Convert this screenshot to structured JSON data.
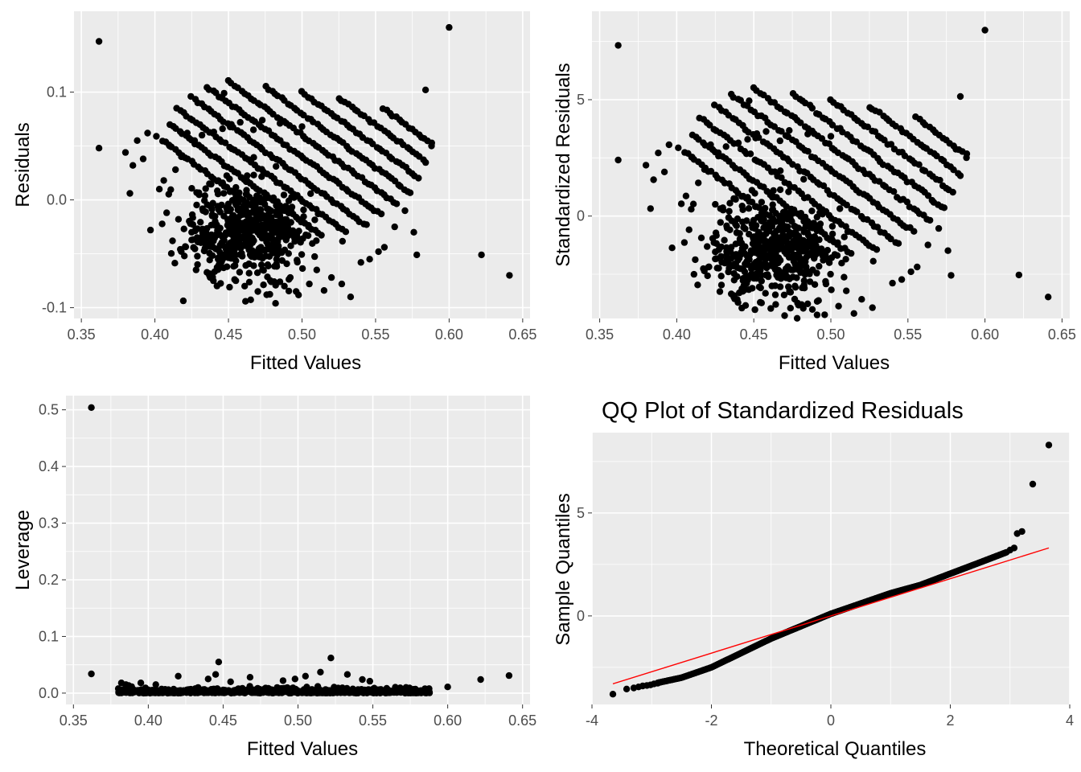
{
  "colors": {
    "panel_background": "#ebebeb",
    "grid_major": "#ffffff",
    "points": "#000000",
    "reference_line": "#ff0000",
    "tick_text": "#4d4d4d"
  },
  "chart_data": [
    {
      "id": "residuals-vs-fitted",
      "type": "scatter",
      "title": "",
      "xlabel": "Fitted Values",
      "ylabel": "Residuals",
      "xlim": [
        0.345,
        0.655
      ],
      "ylim": [
        -0.11,
        0.175
      ],
      "xticks": [
        0.35,
        0.4,
        0.45,
        0.5,
        0.55,
        0.6,
        0.65
      ],
      "xtick_labels": [
        "0.35",
        "0.40",
        "0.45",
        "0.50",
        "0.55",
        "0.60",
        "0.65"
      ],
      "yticks": [
        -0.1,
        0.0,
        0.1
      ],
      "ytick_labels": [
        "-0.1",
        "0.0",
        "0.1"
      ],
      "grid": true,
      "points": [
        [
          0.362,
          0.147
        ],
        [
          0.362,
          0.048
        ],
        [
          0.6,
          0.16
        ],
        [
          0.584,
          0.102
        ],
        [
          0.447,
          0.099
        ],
        [
          0.622,
          -0.051
        ],
        [
          0.641,
          -0.07
        ],
        [
          0.38,
          0.044
        ],
        [
          0.383,
          0.006
        ],
        [
          0.385,
          0.032
        ],
        [
          0.388,
          0.055
        ],
        [
          0.392,
          0.038
        ],
        [
          0.395,
          0.062
        ],
        [
          0.397,
          -0.028
        ],
        [
          0.401,
          0.059
        ],
        [
          0.403,
          0.01
        ],
        [
          0.406,
          0.018
        ],
        [
          0.408,
          -0.012
        ],
        [
          0.41,
          0.05
        ],
        [
          0.412,
          -0.038
        ],
        [
          0.414,
          0.028
        ],
        [
          0.416,
          -0.018
        ],
        [
          0.418,
          0.04
        ],
        [
          0.42,
          -0.052
        ],
        [
          0.422,
          0.062
        ],
        [
          0.425,
          -0.03
        ],
        [
          0.427,
          0.055
        ],
        [
          0.429,
          -0.06
        ],
        [
          0.432,
          0.06
        ],
        [
          0.434,
          -0.045
        ],
        [
          0.437,
          -0.07
        ],
        [
          0.44,
          0.063
        ],
        [
          0.443,
          -0.055
        ],
        [
          0.446,
          0.066
        ],
        [
          0.449,
          -0.062
        ],
        [
          0.452,
          0.07
        ],
        [
          0.455,
          -0.075
        ],
        [
          0.458,
          0.072
        ],
        [
          0.461,
          -0.08
        ],
        [
          0.464,
          -0.068
        ],
        [
          0.467,
          0.065
        ],
        [
          0.47,
          -0.085
        ],
        [
          0.473,
          0.074
        ],
        [
          0.476,
          -0.088
        ],
        [
          0.479,
          -0.076
        ],
        [
          0.482,
          -0.096
        ],
        [
          0.485,
          0.071
        ],
        [
          0.488,
          -0.08
        ],
        [
          0.492,
          -0.072
        ],
        [
          0.496,
          -0.085
        ],
        [
          0.5,
          0.068
        ],
        [
          0.505,
          -0.078
        ],
        [
          0.51,
          -0.065
        ],
        [
          0.515,
          -0.084
        ],
        [
          0.52,
          -0.072
        ],
        [
          0.527,
          -0.078
        ],
        [
          0.533,
          -0.09
        ],
        [
          0.54,
          -0.058
        ],
        [
          0.546,
          -0.055
        ],
        [
          0.552,
          -0.048
        ],
        [
          0.556,
          -0.044
        ],
        [
          0.563,
          -0.025
        ],
        [
          0.57,
          -0.01
        ],
        [
          0.576,
          -0.03
        ],
        [
          0.578,
          -0.051
        ],
        [
          0.588,
          0.05
        ]
      ],
      "line_families": {
        "description": "Diagonal bands of points, each band residual = c - fitted",
        "intercepts": [
          0.46,
          0.48,
          0.5,
          0.52,
          0.54,
          0.56,
          0.58,
          0.6,
          0.62,
          0.64
        ],
        "x_starts": [
          0.405,
          0.41,
          0.415,
          0.425,
          0.435,
          0.45,
          0.475,
          0.5,
          0.525,
          0.555
        ],
        "x_ends": [
          0.5,
          0.515,
          0.53,
          0.545,
          0.555,
          0.565,
          0.575,
          0.58,
          0.585,
          0.59
        ]
      }
    },
    {
      "id": "standardized-residuals-vs-fitted",
      "type": "scatter",
      "title": "",
      "xlabel": "Fitted Values",
      "ylabel": "Standardized Residuals",
      "xlim": [
        0.345,
        0.655
      ],
      "ylim": [
        -4.4,
        8.8
      ],
      "xticks": [
        0.35,
        0.4,
        0.45,
        0.5,
        0.55,
        0.6,
        0.65
      ],
      "xtick_labels": [
        "0.35",
        "0.40",
        "0.45",
        "0.50",
        "0.55",
        "0.60",
        "0.65"
      ],
      "yticks": [
        0,
        5
      ],
      "ytick_labels": [
        "0",
        "5"
      ],
      "grid": true,
      "scale_from_residuals": 50,
      "points_note": "same observations as residuals panel, standardized"
    },
    {
      "id": "leverage-vs-fitted",
      "type": "scatter",
      "title": "",
      "xlabel": "Fitted Values",
      "ylabel": "Leverage",
      "xlim": [
        0.345,
        0.655
      ],
      "ylim": [
        -0.02,
        0.525
      ],
      "xticks": [
        0.35,
        0.4,
        0.45,
        0.5,
        0.55,
        0.6,
        0.65
      ],
      "xtick_labels": [
        "0.35",
        "0.40",
        "0.45",
        "0.50",
        "0.55",
        "0.60",
        "0.65"
      ],
      "yticks": [
        0.0,
        0.1,
        0.2,
        0.3,
        0.4,
        0.5
      ],
      "ytick_labels": [
        "0.0",
        "0.1",
        "0.2",
        "0.3",
        "0.4",
        "0.5"
      ],
      "grid": true,
      "points": [
        [
          0.362,
          0.504
        ],
        [
          0.362,
          0.034
        ],
        [
          0.447,
          0.055
        ],
        [
          0.522,
          0.062
        ],
        [
          0.641,
          0.031
        ],
        [
          0.622,
          0.024
        ],
        [
          0.6,
          0.011
        ],
        [
          0.38,
          0.008
        ],
        [
          0.382,
          0.018
        ],
        [
          0.385,
          0.015
        ],
        [
          0.395,
          0.018
        ],
        [
          0.405,
          0.015
        ],
        [
          0.42,
          0.03
        ],
        [
          0.445,
          0.033
        ],
        [
          0.468,
          0.028
        ],
        [
          0.498,
          0.025
        ],
        [
          0.505,
          0.03
        ],
        [
          0.515,
          0.037
        ],
        [
          0.533,
          0.033
        ],
        [
          0.543,
          0.024
        ],
        [
          0.548,
          0.021
        ],
        [
          0.455,
          0.02
        ],
        [
          0.44,
          0.025
        ],
        [
          0.49,
          0.022
        ]
      ],
      "dense_band": {
        "x_range": [
          0.38,
          0.588
        ],
        "y_range": [
          0.0,
          0.015
        ]
      }
    },
    {
      "id": "qq-plot",
      "type": "scatter",
      "title": "QQ Plot of Standardized Residuals",
      "xlabel": "Theoretical Quantiles",
      "ylabel": "Sample Quantiles",
      "xlim": [
        -4.0,
        4.0
      ],
      "ylim": [
        -4.3,
        8.9
      ],
      "xticks": [
        -4,
        -2,
        0,
        2,
        4
      ],
      "xtick_labels": [
        "-4",
        "-2",
        "0",
        "2",
        "4"
      ],
      "yticks": [
        0,
        5
      ],
      "ytick_labels": [
        "0",
        "5"
      ],
      "grid": true,
      "reference_line": {
        "x": [
          -3.65,
          3.65
        ],
        "y": [
          -3.3,
          3.3
        ]
      },
      "tail_points": [
        [
          -3.65,
          -3.8
        ],
        [
          -3.42,
          -3.55
        ],
        [
          -3.3,
          -3.5
        ],
        [
          -3.22,
          -3.45
        ],
        [
          -3.15,
          -3.4
        ],
        [
          -3.08,
          -3.38
        ],
        [
          -3.02,
          -3.35
        ],
        [
          -2.96,
          -3.3
        ],
        [
          -2.9,
          -3.27
        ],
        [
          3.0,
          3.2
        ],
        [
          3.07,
          3.3
        ],
        [
          3.12,
          4.0
        ],
        [
          3.2,
          4.1
        ],
        [
          3.38,
          6.4
        ],
        [
          3.65,
          8.3
        ]
      ],
      "body_curve": {
        "x": [
          -2.9,
          -2.5,
          -2.0,
          -1.5,
          -1.0,
          -0.5,
          0.0,
          0.5,
          1.0,
          1.5,
          2.0,
          2.5,
          2.95
        ],
        "y": [
          -3.25,
          -3.0,
          -2.5,
          -1.8,
          -1.1,
          -0.5,
          0.1,
          0.6,
          1.1,
          1.5,
          2.05,
          2.6,
          3.1
        ]
      }
    }
  ]
}
